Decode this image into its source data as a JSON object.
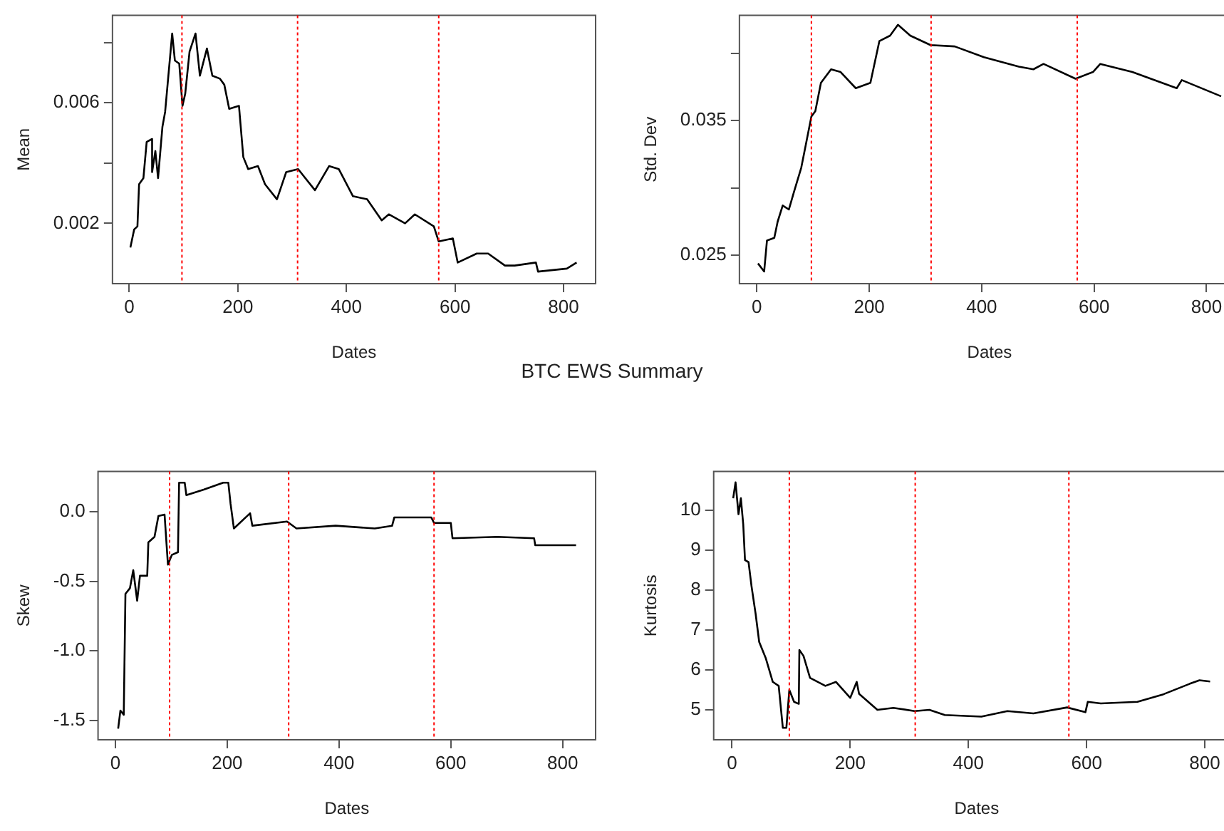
{
  "chart_data": [
    {
      "type": "line",
      "title": "BTC EWS Summary",
      "xlabel": "Dates",
      "ylabel": "Mean",
      "xlim": [
        -31,
        859
      ],
      "xticks": [
        0,
        200,
        400,
        600,
        800
      ],
      "ylim": [
        0,
        0.0089
      ],
      "yticks": [
        {
          "value": 0.002,
          "label": "0.002"
        },
        {
          "value": 0.004,
          "label": null
        },
        {
          "value": 0.006,
          "label": "0.006"
        },
        {
          "value": 0.008,
          "label": null
        }
      ],
      "grid": false,
      "legend": false,
      "marker": "none",
      "line_style": "solid",
      "ref_lines": [
        {
          "axis": "x",
          "value": 97,
          "color": "#ff0000",
          "line_style": "dotted"
        },
        {
          "axis": "x",
          "value": 310,
          "color": "#ff0000",
          "line_style": "dotted"
        },
        {
          "axis": "x",
          "value": 570,
          "color": "#ff0000",
          "line_style": "dotted"
        }
      ],
      "series": [
        {
          "color": "#000000",
          "x": [
            2,
            9,
            15,
            18,
            26,
            32,
            42,
            42,
            48,
            53,
            61,
            66,
            79,
            84,
            92,
            98,
            103,
            111,
            122,
            130,
            143,
            153,
            167,
            175,
            184,
            202,
            210,
            219,
            237,
            250,
            272,
            289,
            311,
            342,
            368,
            386,
            412,
            438,
            465,
            478,
            508,
            526,
            561,
            570,
            596,
            605,
            640,
            661,
            692,
            710,
            749,
            753,
            806,
            824
          ],
          "values": [
            0.0012,
            0.0018,
            0.0019,
            0.0033,
            0.0035,
            0.0047,
            0.0048,
            0.0037,
            0.0044,
            0.0035,
            0.0052,
            0.0057,
            0.0083,
            0.0074,
            0.0073,
            0.0059,
            0.0063,
            0.0077,
            0.0083,
            0.0069,
            0.0078,
            0.0069,
            0.0068,
            0.0066,
            0.0058,
            0.0059,
            0.0042,
            0.0038,
            0.0039,
            0.0033,
            0.0028,
            0.0037,
            0.0038,
            0.0031,
            0.0039,
            0.0038,
            0.0029,
            0.0028,
            0.0021,
            0.0023,
            0.002,
            0.0023,
            0.0019,
            0.0014,
            0.0015,
            0.0007,
            0.001,
            0.001,
            0.0006,
            0.0006,
            0.0007,
            0.0004,
            0.0005,
            0.0007
          ]
        }
      ]
    },
    {
      "type": "line",
      "xlabel": "Dates",
      "ylabel": "Std. Dev",
      "xlim": [
        -31,
        859
      ],
      "xticks": [
        0,
        200,
        400,
        600,
        800
      ],
      "ylim": [
        0.0229,
        0.0428
      ],
      "yticks": [
        {
          "value": 0.025,
          "label": "0.025"
        },
        {
          "value": 0.03,
          "label": null
        },
        {
          "value": 0.035,
          "label": "0.035"
        },
        {
          "value": 0.04,
          "label": null
        }
      ],
      "grid": false,
      "legend": false,
      "marker": "none",
      "line_style": "solid",
      "ref_lines": [
        {
          "axis": "x",
          "value": 97,
          "color": "#ff0000",
          "line_style": "dotted"
        },
        {
          "axis": "x",
          "value": 310,
          "color": "#ff0000",
          "line_style": "dotted"
        },
        {
          "axis": "x",
          "value": 570,
          "color": "#ff0000",
          "line_style": "dotted"
        }
      ],
      "series": [
        {
          "color": "#000000",
          "x": [
            2,
            13,
            18,
            31,
            37,
            46,
            57,
            66,
            79,
            88,
            97,
            104,
            114,
            132,
            149,
            176,
            202,
            218,
            237,
            251,
            273,
            309,
            352,
            404,
            466,
            492,
            510,
            567,
            598,
            611,
            668,
            747,
            756,
            826
          ],
          "values": [
            0.0244,
            0.0238,
            0.0261,
            0.0263,
            0.0275,
            0.0287,
            0.0284,
            0.0297,
            0.0315,
            0.0334,
            0.0353,
            0.0357,
            0.0378,
            0.0388,
            0.0386,
            0.0374,
            0.0378,
            0.0409,
            0.0413,
            0.0421,
            0.0413,
            0.0406,
            0.0405,
            0.0397,
            0.039,
            0.0388,
            0.0392,
            0.0381,
            0.0386,
            0.0392,
            0.0386,
            0.0374,
            0.038,
            0.0368
          ]
        }
      ]
    },
    {
      "type": "line",
      "xlabel": "Dates",
      "ylabel": "Skew",
      "xlim": [
        -31,
        859
      ],
      "xticks": [
        0,
        200,
        400,
        600,
        800
      ],
      "ylim": [
        -1.64,
        0.29
      ],
      "yticks": [
        {
          "value": -1.5,
          "label": "-1.5"
        },
        {
          "value": -1,
          "label": "-1.0"
        },
        {
          "value": -0.5,
          "label": "-0.5"
        },
        {
          "value": 0,
          "label": "0.0"
        }
      ],
      "grid": false,
      "legend": false,
      "marker": "none",
      "line_style": "solid",
      "ref_lines": [
        {
          "axis": "x",
          "value": 97,
          "color": "#ff0000",
          "line_style": "dotted"
        },
        {
          "axis": "x",
          "value": 310,
          "color": "#ff0000",
          "line_style": "dotted"
        },
        {
          "axis": "x",
          "value": 570,
          "color": "#ff0000",
          "line_style": "dotted"
        }
      ],
      "series": [
        {
          "color": "#000000",
          "x": [
            5,
            9,
            15,
            18,
            26,
            32,
            39,
            44,
            57,
            59,
            70,
            77,
            88,
            94,
            101,
            112,
            114,
            124,
            127,
            158,
            193,
            202,
            206,
            212,
            241,
            245,
            307,
            324,
            394,
            464,
            495,
            499,
            565,
            570,
            600,
            603,
            683,
            749,
            751,
            824
          ],
          "values": [
            -1.56,
            -1.43,
            -1.46,
            -0.59,
            -0.55,
            -0.42,
            -0.64,
            -0.46,
            -0.46,
            -0.22,
            -0.18,
            -0.03,
            -0.02,
            -0.38,
            -0.31,
            -0.29,
            0.21,
            0.21,
            0.12,
            0.16,
            0.21,
            0.21,
            0.06,
            -0.12,
            -0.01,
            -0.1,
            -0.07,
            -0.12,
            -0.1,
            -0.12,
            -0.1,
            -0.04,
            -0.04,
            -0.08,
            -0.08,
            -0.19,
            -0.18,
            -0.19,
            -0.24,
            -0.24
          ]
        }
      ]
    },
    {
      "type": "line",
      "xlabel": "Dates",
      "ylabel": "Kurtosis",
      "xlim": [
        -31,
        859
      ],
      "xticks": [
        0,
        200,
        400,
        600,
        800
      ],
      "ylim": [
        4.25,
        10.97
      ],
      "yticks": [
        5,
        6,
        7,
        8,
        9,
        10
      ],
      "grid": false,
      "legend": false,
      "marker": "none",
      "line_style": "solid",
      "ref_lines": [
        {
          "axis": "x",
          "value": 97,
          "color": "#ff0000",
          "line_style": "dotted"
        },
        {
          "axis": "x",
          "value": 310,
          "color": "#ff0000",
          "line_style": "dotted"
        },
        {
          "axis": "x",
          "value": 570,
          "color": "#ff0000",
          "line_style": "dotted"
        }
      ],
      "series": [
        {
          "color": "#000000",
          "x": [
            2,
            6,
            11,
            15,
            19,
            22,
            28,
            33,
            40,
            46,
            57,
            69,
            79,
            86,
            92,
            97,
            105,
            113,
            114,
            121,
            132,
            158,
            176,
            200,
            211,
            215,
            246,
            273,
            309,
            334,
            360,
            422,
            466,
            510,
            567,
            598,
            602,
            624,
            686,
            730,
            774,
            791,
            809
          ],
          "values": [
            10.3,
            10.7,
            9.9,
            10.3,
            9.65,
            8.75,
            8.7,
            8.1,
            7.4,
            6.7,
            6.3,
            5.7,
            5.6,
            4.55,
            4.55,
            5.5,
            5.2,
            5.15,
            6.5,
            6.35,
            5.8,
            5.6,
            5.7,
            5.3,
            5.7,
            5.4,
            5.0,
            5.05,
            4.97,
            5.0,
            4.87,
            4.83,
            4.97,
            4.91,
            5.06,
            4.94,
            5.2,
            5.16,
            5.2,
            5.39,
            5.65,
            5.74,
            5.71
          ]
        }
      ]
    }
  ]
}
